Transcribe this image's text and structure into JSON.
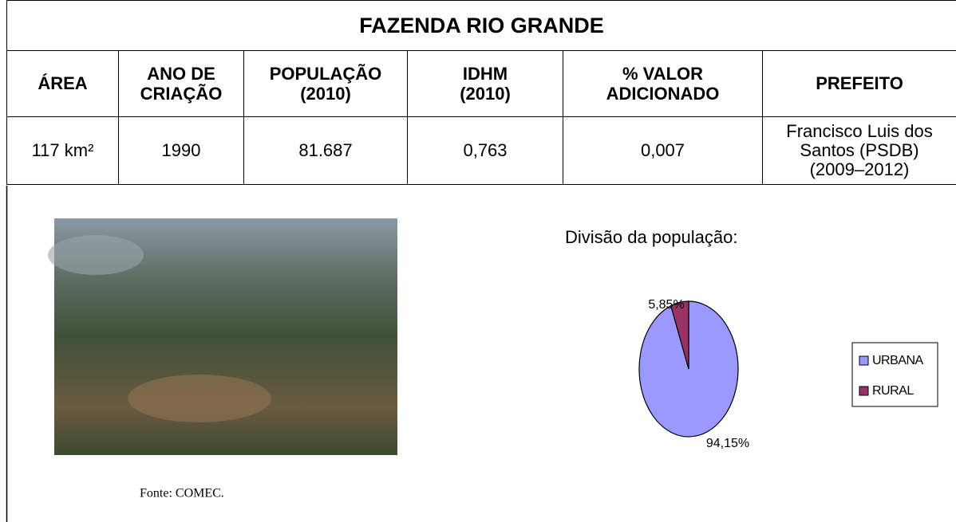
{
  "table": {
    "title": "FAZENDA RIO GRANDE",
    "headers": [
      "ÁREA",
      "ANO DE\nCRIAÇÃO",
      "POPULAÇÃO\n(2010)",
      "IDHM\n(2010)",
      "% VALOR\nADICIONADO",
      "PREFEITO"
    ],
    "rows": [
      [
        "117 km²",
        "1990",
        "81.687",
        "0,763",
        "0,007",
        "Francisco Luis dos\nSantos (PSDB)\n(2009–2012)"
      ]
    ]
  },
  "photo": {
    "caption": "Fonte: COMEC."
  },
  "chart_data": {
    "type": "pie",
    "title": "Divisão da população:",
    "categories": [
      "URBANA",
      "RURAL"
    ],
    "values": [
      94.15,
      5.85
    ],
    "value_labels": [
      "94,15%",
      "5,85%"
    ],
    "colors": [
      "#9999ff",
      "#993366"
    ]
  }
}
